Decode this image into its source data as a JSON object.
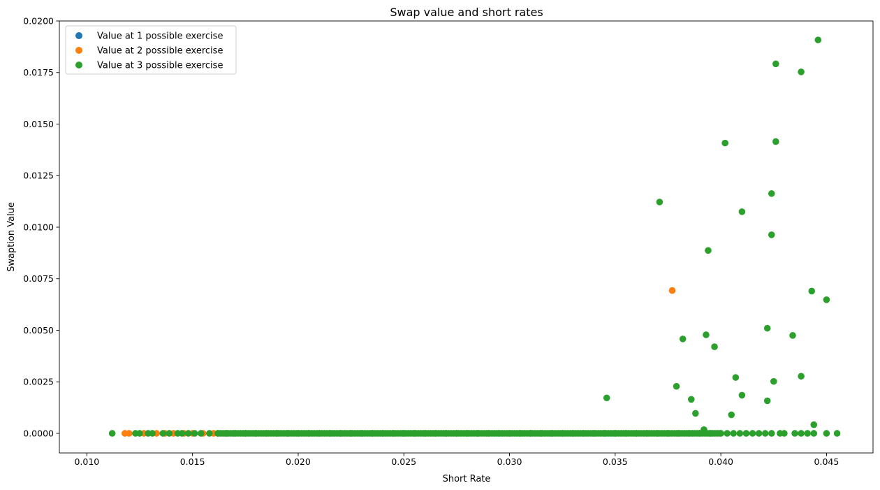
{
  "chart_data": {
    "type": "scatter",
    "title": "Swap value and short rates",
    "xlabel": "Short Rate",
    "ylabel": "Swaption Value",
    "xlim": [
      0.0087,
      0.0472
    ],
    "ylim": [
      -0.00095,
      0.02
    ],
    "xticks": [
      0.01,
      0.015,
      0.02,
      0.025,
      0.03,
      0.035,
      0.04,
      0.045
    ],
    "xtick_labels": [
      "0.010",
      "0.015",
      "0.020",
      "0.025",
      "0.030",
      "0.035",
      "0.040",
      "0.045"
    ],
    "yticks": [
      0.0,
      0.0025,
      0.005,
      0.0075,
      0.01,
      0.0125,
      0.015,
      0.0175,
      0.02
    ],
    "ytick_labels": [
      "0.0000",
      "0.0025",
      "0.0050",
      "0.0075",
      "0.0100",
      "0.0125",
      "0.0150",
      "0.0175",
      "0.0200"
    ],
    "grid": false,
    "legend_position": "top-left",
    "series": [
      {
        "name": "Value at 1 possible exercise",
        "color": "#1f77b4",
        "points": []
      },
      {
        "name": "Value at 2 possible exercise",
        "color": "#ff7f0e",
        "points": [
          [
            0.0118,
            0
          ],
          [
            0.012,
            0
          ],
          [
            0.0127,
            0
          ],
          [
            0.0133,
            0
          ],
          [
            0.0137,
            0
          ],
          [
            0.0141,
            0
          ],
          [
            0.0146,
            0
          ],
          [
            0.015,
            0
          ],
          [
            0.0155,
            0
          ],
          [
            0.016,
            0
          ],
          [
            0.0377,
            0.00693
          ]
        ]
      },
      {
        "name": "Value at 3 possible exercise",
        "color": "#2ca02c",
        "points": [
          [
            0.0112,
            0
          ],
          [
            0.0123,
            0
          ],
          [
            0.0125,
            0
          ],
          [
            0.0129,
            0
          ],
          [
            0.0131,
            0
          ],
          [
            0.0136,
            0
          ],
          [
            0.0139,
            0
          ],
          [
            0.0143,
            0
          ],
          [
            0.0145,
            0
          ],
          [
            0.0148,
            0
          ],
          [
            0.0151,
            0
          ],
          [
            0.0154,
            0
          ],
          [
            0.0158,
            0
          ],
          [
            0.0162,
            0
          ],
          [
            0.0166,
            0
          ],
          [
            0.017,
            0
          ],
          [
            0.0175,
            0
          ],
          [
            0.018,
            0
          ],
          [
            0.0185,
            0
          ],
          [
            0.019,
            0
          ],
          [
            0.0195,
            0
          ],
          [
            0.02,
            0
          ],
          [
            0.0205,
            0
          ],
          [
            0.021,
            0
          ],
          [
            0.0215,
            0
          ],
          [
            0.022,
            0
          ],
          [
            0.0225,
            0
          ],
          [
            0.023,
            0
          ],
          [
            0.0235,
            0
          ],
          [
            0.024,
            0
          ],
          [
            0.0245,
            0
          ],
          [
            0.025,
            0
          ],
          [
            0.0255,
            0
          ],
          [
            0.026,
            0
          ],
          [
            0.0265,
            0
          ],
          [
            0.027,
            0
          ],
          [
            0.0275,
            0
          ],
          [
            0.028,
            0
          ],
          [
            0.0285,
            0
          ],
          [
            0.029,
            0
          ],
          [
            0.0295,
            0
          ],
          [
            0.03,
            0
          ],
          [
            0.0305,
            0
          ],
          [
            0.031,
            0
          ],
          [
            0.0315,
            0
          ],
          [
            0.032,
            0
          ],
          [
            0.0325,
            0
          ],
          [
            0.033,
            0
          ],
          [
            0.0335,
            0
          ],
          [
            0.034,
            0
          ],
          [
            0.0345,
            0
          ],
          [
            0.035,
            0
          ],
          [
            0.0355,
            0
          ],
          [
            0.036,
            0
          ],
          [
            0.0365,
            0
          ],
          [
            0.037,
            0
          ],
          [
            0.0375,
            0
          ],
          [
            0.038,
            0
          ],
          [
            0.0385,
            0
          ],
          [
            0.039,
            0
          ],
          [
            0.0395,
            0
          ],
          [
            0.04,
            0
          ],
          [
            0.0403,
            0
          ],
          [
            0.0406,
            0
          ],
          [
            0.0409,
            0
          ],
          [
            0.0412,
            0
          ],
          [
            0.0415,
            0
          ],
          [
            0.0418,
            0
          ],
          [
            0.0421,
            0
          ],
          [
            0.0424,
            0
          ],
          [
            0.0428,
            0
          ],
          [
            0.043,
            0
          ],
          [
            0.0435,
            0
          ],
          [
            0.0438,
            0
          ],
          [
            0.0441,
            0
          ],
          [
            0.0444,
            0
          ],
          [
            0.045,
            0
          ],
          [
            0.0455,
            0
          ],
          [
            0.0346,
            0.00172
          ],
          [
            0.0371,
            0.01122
          ],
          [
            0.0379,
            0.00228
          ],
          [
            0.0382,
            0.00458
          ],
          [
            0.0386,
            0.00165
          ],
          [
            0.0388,
            0.00097
          ],
          [
            0.0392,
            0.00018
          ],
          [
            0.0393,
            0.00478
          ],
          [
            0.0394,
            0.00887
          ],
          [
            0.0397,
            0.0042
          ],
          [
            0.0402,
            0.01408
          ],
          [
            0.0405,
            0.0009
          ],
          [
            0.0407,
            0.00271
          ],
          [
            0.041,
            0.00185
          ],
          [
            0.041,
            0.01075
          ],
          [
            0.0422,
            0.00158
          ],
          [
            0.0422,
            0.0051
          ],
          [
            0.0424,
            0.00963
          ],
          [
            0.0424,
            0.01163
          ],
          [
            0.0425,
            0.00252
          ],
          [
            0.0426,
            0.01415
          ],
          [
            0.0426,
            0.01792
          ],
          [
            0.0434,
            0.00475
          ],
          [
            0.0438,
            0.01753
          ],
          [
            0.0438,
            0.00277
          ],
          [
            0.0443,
            0.0069
          ],
          [
            0.0444,
            0.00042
          ],
          [
            0.0446,
            0.01908
          ],
          [
            0.045,
            0.00648
          ]
        ]
      }
    ]
  }
}
